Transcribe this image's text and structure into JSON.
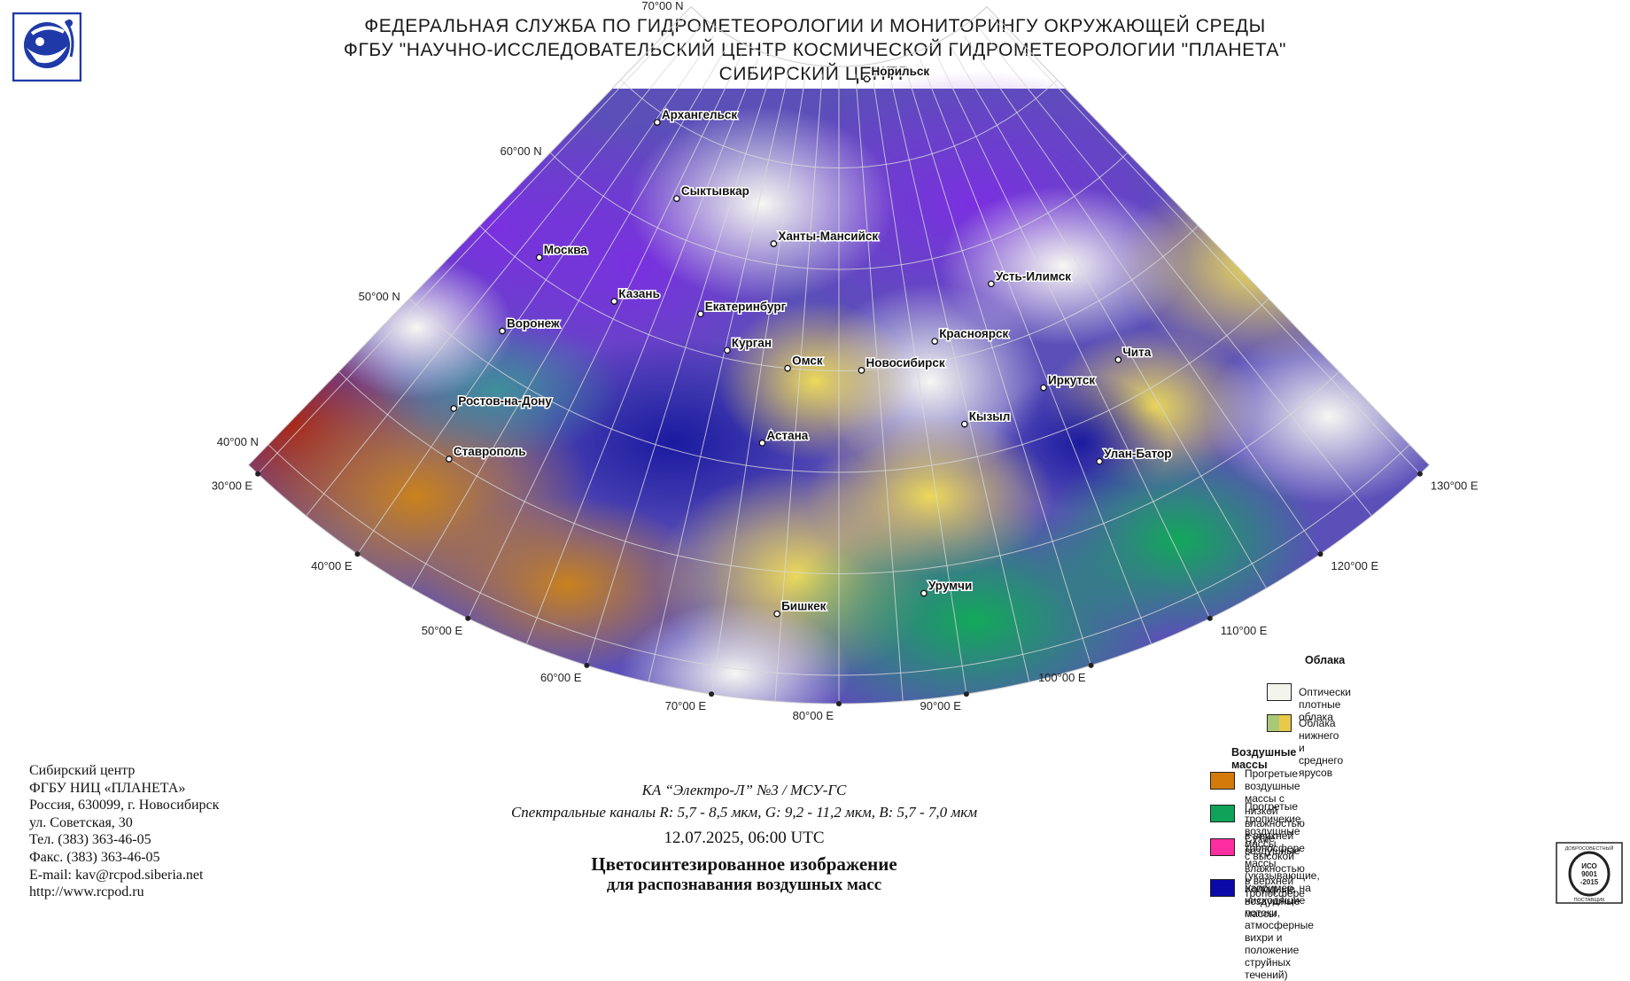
{
  "header": {
    "line1": "ФЕДЕРАЛЬНАЯ СЛУЖБА ПО ГИДРОМЕТЕОРОЛОГИИ И МОНИТОРИНГУ ОКРУЖАЮЩЕЙ СРЕДЫ",
    "line2": "ФГБУ \"НАУЧНО-ИССЛЕДОВАТЕЛЬСКИЙ ЦЕНТР КОСМИЧЕСКОЙ ГИДРОМЕТЕОРОЛОГИИ \"ПЛАНЕТА\"",
    "line3": "СИБИРСКИЙ ЦЕНТР"
  },
  "logo": {
    "icon": "roshydromet-logo",
    "color": "#1f3aa8"
  },
  "latitudes": [
    {
      "lat": 70,
      "label": "70°00 N"
    },
    {
      "lat": 60,
      "label": "60°00 N"
    },
    {
      "lat": 50,
      "label": "50°00 N"
    },
    {
      "lat": 40,
      "label": "40°00 N"
    }
  ],
  "longitudes": [
    {
      "lon": 30,
      "label": "30°00 E"
    },
    {
      "lon": 40,
      "label": "40°00 E"
    },
    {
      "lon": 50,
      "label": "50°00 E"
    },
    {
      "lon": 60,
      "label": "60°00 E"
    },
    {
      "lon": 70,
      "label": "70°00 E"
    },
    {
      "lon": 80,
      "label": "80°00 E"
    },
    {
      "lon": 90,
      "label": "90°00 E"
    },
    {
      "lon": 100,
      "label": "100°00 E"
    },
    {
      "lon": 110,
      "label": "110°00 E"
    },
    {
      "lon": 120,
      "label": "120°00 E"
    },
    {
      "lon": 130,
      "label": "130°00 E"
    }
  ],
  "cities": [
    {
      "name": "Архангельск",
      "lat": 64.5,
      "lon": 40.5
    },
    {
      "name": "Норильск",
      "lat": 69.3,
      "lon": 88.2
    },
    {
      "name": "Сыктывкар",
      "lat": 61.7,
      "lon": 50.8
    },
    {
      "name": "Москва",
      "lat": 55.7,
      "lon": 37.6
    },
    {
      "name": "Ханты-Мансийск",
      "lat": 61.0,
      "lon": 69.0
    },
    {
      "name": "Усть-Илимск",
      "lat": 58.0,
      "lon": 102.6
    },
    {
      "name": "Казань",
      "lat": 55.8,
      "lon": 49.1
    },
    {
      "name": "Воронеж",
      "lat": 51.7,
      "lon": 39.2
    },
    {
      "name": "Екатеринбург",
      "lat": 56.8,
      "lon": 60.6
    },
    {
      "name": "Красноярск",
      "lat": 56.0,
      "lon": 92.9
    },
    {
      "name": "Чита",
      "lat": 52.0,
      "lon": 113.5
    },
    {
      "name": "Курган",
      "lat": 55.4,
      "lon": 65.3
    },
    {
      "name": "Омск",
      "lat": 55.0,
      "lon": 73.4
    },
    {
      "name": "Новосибирск",
      "lat": 55.0,
      "lon": 82.9
    },
    {
      "name": "Иркутск",
      "lat": 52.3,
      "lon": 104.3
    },
    {
      "name": "Ростов-на-Дону",
      "lat": 47.2,
      "lon": 39.7
    },
    {
      "name": "Кызыл",
      "lat": 51.7,
      "lon": 94.4
    },
    {
      "name": "Ставрополь",
      "lat": 45.0,
      "lon": 42.0
    },
    {
      "name": "Астана",
      "lat": 51.2,
      "lon": 71.4
    },
    {
      "name": "Улан-Батор",
      "lat": 47.9,
      "lon": 106.9
    },
    {
      "name": "Урумчи",
      "lat": 43.8,
      "lon": 87.6
    },
    {
      "name": "Бишкек",
      "lat": 42.9,
      "lon": 74.6
    }
  ],
  "address": {
    "l1": "Сибирский центр",
    "l2": "ФГБУ НИЦ «ПЛАНЕТА»",
    "l3": "Россия, 630099, г. Новосибирск",
    "l4": "ул. Советская, 30",
    "l5": "Тел. (383) 363-46-05",
    "l6": "Факс. (383) 363-46-05",
    "l7": "E-mail: kav@rcpod.siberia.net",
    "l8": "http://www.rcpod.ru"
  },
  "satellite": {
    "craft": "КА “Электро-Л” №3 / МСУ-ГС",
    "channels": "Спектральные каналы R: 5,7 - 8,5 мкм, G: 9,2 - 11,2 мкм, B: 5,7 - 7,0 мкм",
    "datetime": "12.07.2025, 06:00 UTC",
    "title1": "Цветосинтезированное изображение",
    "title2": "для распознавания воздушных масс"
  },
  "legend": {
    "clouds_title": "Облака",
    "clouds": [
      {
        "label": "Оптически плотные облака",
        "color": "#f4f4ee"
      },
      {
        "label": "Облака нижнего и среднего ярусов",
        "color": "#a9c878",
        "color2": "#e8c94a"
      }
    ],
    "air_title": "Воздушные массы",
    "air": [
      {
        "label1": "Прогретые воздушные массы с низкой",
        "label2": "влажностью в верхней тропосфере",
        "label3": "",
        "color": "#d47a0a"
      },
      {
        "label1": "Прогретые тропичекие воздушные массы",
        "label2": "с высокой влажностью в верхней тропосфере",
        "label3": "",
        "color": "#0fa35a"
      },
      {
        "label1": "Сухие воздушные массы (указывающие, например, на",
        "label2": "нисходящие потоки, атмосферные вихри и положение",
        "label3": "струйных течений)",
        "color": "#ff2ea0"
      },
      {
        "label1": "Холодные воздушные массы",
        "label2": "",
        "label3": "",
        "color": "#0a0aa8"
      }
    ]
  },
  "iso_badge": {
    "top": "ДОБРОСОВЕСТНЫЙ",
    "mid1": "ИСО",
    "mid2": "9001",
    "mid3": "-2015",
    "bottom": "ПОСТАВЩИК"
  }
}
